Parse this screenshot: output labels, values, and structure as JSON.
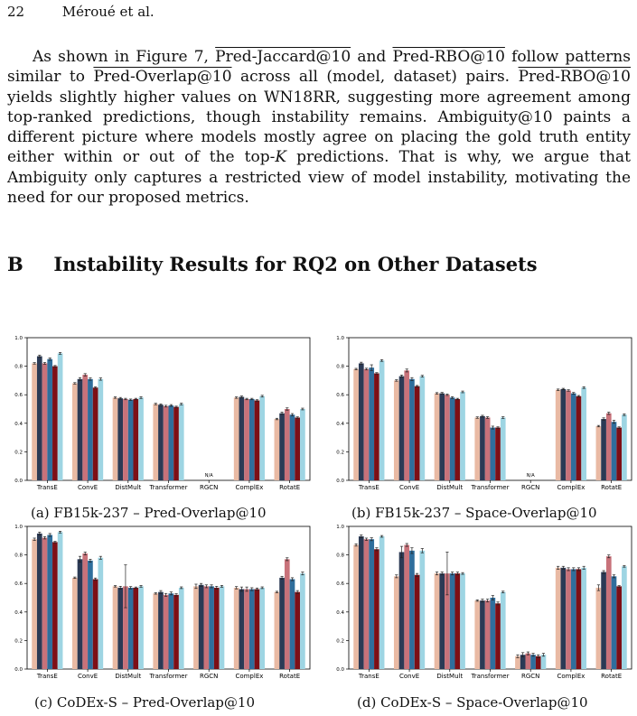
{
  "header": {
    "page_number": "22",
    "running_title": "Méroué et al."
  },
  "paragraph": [
    {
      "t": "As shown in Figure 7, "
    },
    {
      "t": "Pred-Jaccard@10",
      "ov": true
    },
    {
      "t": " and "
    },
    {
      "t": "Pred-RBO@10",
      "ov": true
    },
    {
      "t": " follow patterns similar to "
    },
    {
      "t": "Pred-Overlap@10",
      "ov": true
    },
    {
      "t": " across all (model, dataset) pairs. "
    },
    {
      "t": "Pred-RBO@10",
      "ov": true
    },
    {
      "t": " yields slightly higher values on WN18RR, suggesting more agreement among top-ranked predictions, though instability remains. Ambiguity@10 paints a different picture where models mostly agree on placing the gold truth entity either within or out of the top-"
    },
    {
      "t": "K",
      "it": true
    },
    {
      "t": " predictions. That is why, we argue that Ambiguity only captures a restricted view of model instability, motivating the need for our proposed metrics."
    }
  ],
  "section": {
    "number": "B",
    "title": "Instability Results for RQ2 on Other Datasets"
  },
  "colors": [
    "#e9baa4",
    "#2b3a55",
    "#c8727a",
    "#2f6e9c",
    "#7d0f16",
    "#9ed5e3"
  ],
  "chart_data": [
    {
      "type": "bar",
      "caption": "(a) FB15k-237 – Pred-Overlap@10",
      "categories": [
        "TransE",
        "ConvE",
        "DistMult",
        "Transformer",
        "RGCN",
        "ComplEx",
        "RotatE"
      ],
      "ylim": [
        0,
        1.0
      ],
      "yticks": [
        "0.0",
        "0.2",
        "0.4",
        "0.6",
        "0.8",
        "1.0"
      ],
      "na_label": "N/A",
      "values": [
        [
          0.82,
          0.87,
          0.82,
          0.85,
          0.8,
          0.89
        ],
        [
          0.68,
          0.71,
          0.74,
          0.71,
          0.65,
          0.71
        ],
        [
          0.58,
          0.575,
          0.57,
          0.565,
          0.57,
          0.58
        ],
        [
          0.535,
          0.53,
          0.52,
          0.525,
          0.515,
          0.535
        ],
        null,
        [
          0.58,
          0.585,
          0.57,
          0.57,
          0.56,
          0.59
        ],
        [
          0.43,
          0.47,
          0.5,
          0.46,
          0.44,
          0.5
        ]
      ],
      "errors": [
        [
          0.005,
          0.008,
          0.006,
          0.008,
          0.005,
          0.006
        ],
        [
          0.005,
          0.01,
          0.008,
          0.008,
          0.005,
          0.008
        ],
        [
          0.005,
          0.006,
          0.005,
          0.005,
          0.005,
          0.006
        ],
        [
          0.005,
          0.006,
          0.006,
          0.006,
          0.005,
          0.006
        ],
        null,
        [
          0.005,
          0.006,
          0.005,
          0.005,
          0.005,
          0.006
        ],
        [
          0.005,
          0.008,
          0.008,
          0.008,
          0.005,
          0.006
        ]
      ]
    },
    {
      "type": "bar",
      "caption": "(b) FB15k-237 – Space-Overlap@10",
      "categories": [
        "TransE",
        "ConvE",
        "DistMult",
        "Transformer",
        "RGCN",
        "ComplEx",
        "RotatE"
      ],
      "ylim": [
        0,
        1.0
      ],
      "yticks": [
        "0.0",
        "0.2",
        "0.4",
        "0.6",
        "0.8",
        "1.0"
      ],
      "na_label": "N/A",
      "values": [
        [
          0.78,
          0.82,
          0.78,
          0.79,
          0.75,
          0.84
        ],
        [
          0.7,
          0.73,
          0.77,
          0.71,
          0.66,
          0.73
        ],
        [
          0.61,
          0.61,
          0.6,
          0.58,
          0.57,
          0.62
        ],
        [
          0.44,
          0.45,
          0.44,
          0.37,
          0.37,
          0.44
        ],
        null,
        [
          0.635,
          0.64,
          0.63,
          0.61,
          0.59,
          0.65
        ],
        [
          0.38,
          0.43,
          0.47,
          0.41,
          0.37,
          0.46
        ]
      ],
      "errors": [
        [
          0.005,
          0.008,
          0.006,
          0.02,
          0.005,
          0.006
        ],
        [
          0.005,
          0.008,
          0.01,
          0.01,
          0.005,
          0.006
        ],
        [
          0.005,
          0.006,
          0.005,
          0.006,
          0.005,
          0.006
        ],
        [
          0.005,
          0.006,
          0.006,
          0.01,
          0.005,
          0.006
        ],
        null,
        [
          0.005,
          0.005,
          0.005,
          0.006,
          0.005,
          0.006
        ],
        [
          0.005,
          0.008,
          0.008,
          0.01,
          0.005,
          0.006
        ]
      ]
    },
    {
      "type": "bar",
      "caption": "(c) CoDEx-S – Pred-Overlap@10",
      "categories": [
        "TransE",
        "ConvE",
        "DistMult",
        "Transformer",
        "RGCN",
        "ComplEx",
        "RotatE"
      ],
      "ylim": [
        0,
        1.0
      ],
      "yticks": [
        "0.0",
        "0.2",
        "0.4",
        "0.6",
        "0.8",
        "1.0"
      ],
      "na_label": "",
      "values": [
        [
          0.91,
          0.95,
          0.92,
          0.94,
          0.89,
          0.96
        ],
        [
          0.64,
          0.77,
          0.81,
          0.76,
          0.63,
          0.78
        ],
        [
          0.58,
          0.57,
          0.58,
          0.57,
          0.57,
          0.58
        ],
        [
          0.53,
          0.54,
          0.52,
          0.53,
          0.52,
          0.57
        ],
        [
          0.58,
          0.59,
          0.58,
          0.58,
          0.57,
          0.58
        ],
        [
          0.57,
          0.56,
          0.56,
          0.56,
          0.56,
          0.57
        ],
        [
          0.54,
          0.64,
          0.77,
          0.63,
          0.54,
          0.67
        ]
      ],
      "errors": [
        [
          0.008,
          0.01,
          0.008,
          0.01,
          0.005,
          0.006
        ],
        [
          0.005,
          0.02,
          0.01,
          0.01,
          0.008,
          0.01
        ],
        [
          0.005,
          0.01,
          0.15,
          0.008,
          0.005,
          0.006
        ],
        [
          0.005,
          0.01,
          0.01,
          0.01,
          0.008,
          0.006
        ],
        [
          0.015,
          0.01,
          0.01,
          0.01,
          0.01,
          0.006
        ],
        [
          0.008,
          0.015,
          0.015,
          0.01,
          0.008,
          0.006
        ],
        [
          0.005,
          0.01,
          0.01,
          0.01,
          0.01,
          0.01
        ]
      ]
    },
    {
      "type": "bar",
      "caption": "(d) CoDEx-S – Space-Overlap@10",
      "categories": [
        "TransE",
        "ConvE",
        "DistMult",
        "Transformer",
        "RGCN",
        "ComplEx",
        "RotatE"
      ],
      "ylim": [
        0,
        1.0
      ],
      "yticks": [
        "0.0",
        "0.2",
        "0.4",
        "0.6",
        "0.8",
        "1.0"
      ],
      "na_label": "",
      "values": [
        [
          0.87,
          0.93,
          0.91,
          0.91,
          0.84,
          0.93
        ],
        [
          0.65,
          0.82,
          0.87,
          0.83,
          0.66,
          0.83
        ],
        [
          0.67,
          0.67,
          0.67,
          0.67,
          0.67,
          0.67
        ],
        [
          0.48,
          0.48,
          0.48,
          0.5,
          0.46,
          0.54
        ],
        [
          0.09,
          0.1,
          0.11,
          0.1,
          0.09,
          0.1
        ],
        [
          0.71,
          0.71,
          0.7,
          0.7,
          0.7,
          0.71
        ],
        [
          0.57,
          0.68,
          0.79,
          0.65,
          0.58,
          0.72
        ]
      ],
      "errors": [
        [
          0.008,
          0.01,
          0.008,
          0.01,
          0.01,
          0.006
        ],
        [
          0.01,
          0.04,
          0.01,
          0.02,
          0.01,
          0.015
        ],
        [
          0.01,
          0.01,
          0.15,
          0.01,
          0.01,
          0.006
        ],
        [
          0.005,
          0.01,
          0.01,
          0.015,
          0.01,
          0.006
        ],
        [
          0.01,
          0.015,
          0.01,
          0.01,
          0.01,
          0.01
        ],
        [
          0.01,
          0.01,
          0.01,
          0.01,
          0.01,
          0.01
        ],
        [
          0.02,
          0.01,
          0.01,
          0.01,
          0.005,
          0.006
        ]
      ]
    }
  ]
}
